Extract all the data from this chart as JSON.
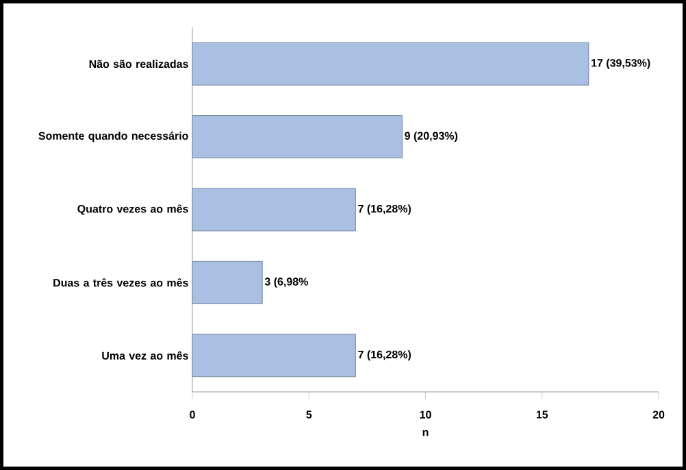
{
  "chart_data": {
    "type": "bar",
    "orientation": "horizontal",
    "categories": [
      "Não são realizadas",
      "Somente quando necessário",
      "Quatro vezes ao mês",
      "Duas a três vezes ao mês",
      "Uma vez ao mês"
    ],
    "values": [
      17,
      9,
      7,
      3,
      7
    ],
    "value_labels": [
      "17 (39,53%)",
      "9 (20,93%)",
      "7 (16,28%)",
      "3 (6,98%",
      "7 (16,28%)"
    ],
    "color": "#a9c0e2",
    "xlim": [
      0,
      20
    ],
    "xticks": [
      0,
      5,
      10,
      15,
      20
    ],
    "xlabel": "n"
  }
}
